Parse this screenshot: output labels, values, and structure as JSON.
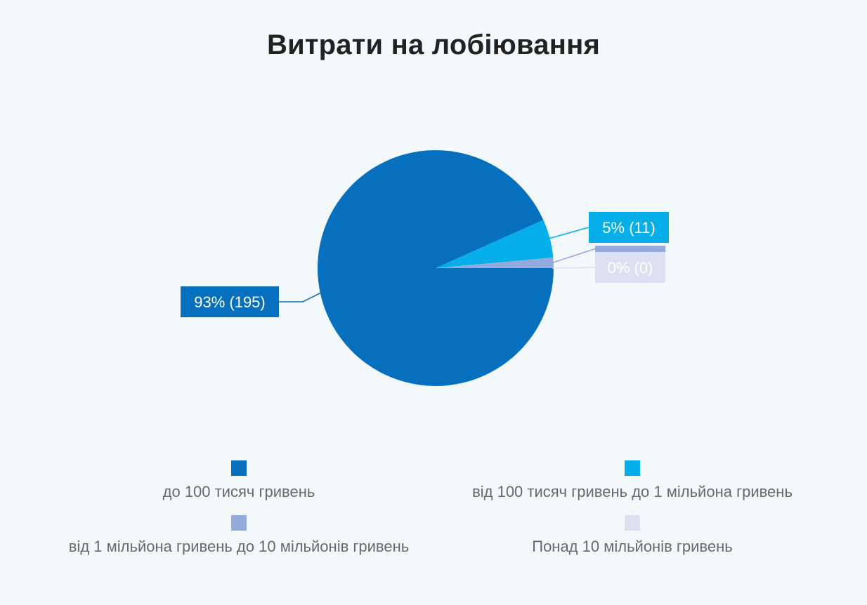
{
  "chart_data": {
    "type": "pie",
    "title": "Витрати на лобіювання",
    "slices": [
      {
        "label": "до 100 тисяч гривень",
        "value": 195,
        "percent_label": "93% (195)",
        "color": "#0670bf"
      },
      {
        "label": "від 100 тисяч гривень до 1 мільйона гривень",
        "value": 11,
        "percent_label": "5% (11)",
        "color": "#06aeea"
      },
      {
        "label": "від 1 мільйона гривень до 10 мільйонів гривень",
        "value": 3,
        "percent_label": "",
        "color": "#94a9dc"
      },
      {
        "label": "Понад 10 мільйонів гривень",
        "value": 0,
        "percent_label": "0% (0)",
        "color": "#dbe1f2"
      }
    ],
    "legend_position": "bottom"
  }
}
